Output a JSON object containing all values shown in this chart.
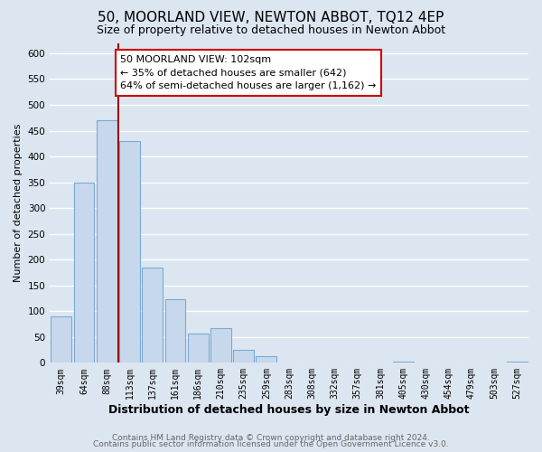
{
  "title": "50, MOORLAND VIEW, NEWTON ABBOT, TQ12 4EP",
  "subtitle": "Size of property relative to detached houses in Newton Abbot",
  "xlabel": "Distribution of detached houses by size in Newton Abbot",
  "ylabel": "Number of detached properties",
  "footer_line1": "Contains HM Land Registry data © Crown copyright and database right 2024.",
  "footer_line2": "Contains public sector information licensed under the Open Government Licence v3.0.",
  "bin_labels": [
    "39sqm",
    "64sqm",
    "88sqm",
    "113sqm",
    "137sqm",
    "161sqm",
    "186sqm",
    "210sqm",
    "235sqm",
    "259sqm",
    "283sqm",
    "308sqm",
    "332sqm",
    "357sqm",
    "381sqm",
    "405sqm",
    "430sqm",
    "454sqm",
    "479sqm",
    "503sqm",
    "527sqm"
  ],
  "bar_values": [
    90,
    350,
    470,
    430,
    185,
    123,
    57,
    68,
    25,
    13,
    0,
    0,
    0,
    0,
    0,
    3,
    0,
    0,
    0,
    0,
    3
  ],
  "bar_color": "#c8d8ec",
  "bar_edge_color": "#7aaad4",
  "bar_edge_width": 0.8,
  "vline_x": 2.5,
  "vline_color": "#990000",
  "annotation_title": "50 MOORLAND VIEW: 102sqm",
  "annotation_line1": "← 35% of detached houses are smaller (642)",
  "annotation_line2": "64% of semi-detached houses are larger (1,162) →",
  "annotation_box_facecolor": "#ffffff",
  "annotation_box_edgecolor": "#cc0000",
  "ylim": [
    0,
    620
  ],
  "yticks": [
    0,
    50,
    100,
    150,
    200,
    250,
    300,
    350,
    400,
    450,
    500,
    550,
    600
  ],
  "background_color": "#dce6f0",
  "axes_background_color": "#dce6f0",
  "grid_color": "#ffffff",
  "title_fontsize": 11,
  "subtitle_fontsize": 9,
  "xlabel_fontsize": 9,
  "ylabel_fontsize": 8,
  "tick_fontsize": 7,
  "annot_fontsize": 8,
  "footer_fontsize": 6.5
}
